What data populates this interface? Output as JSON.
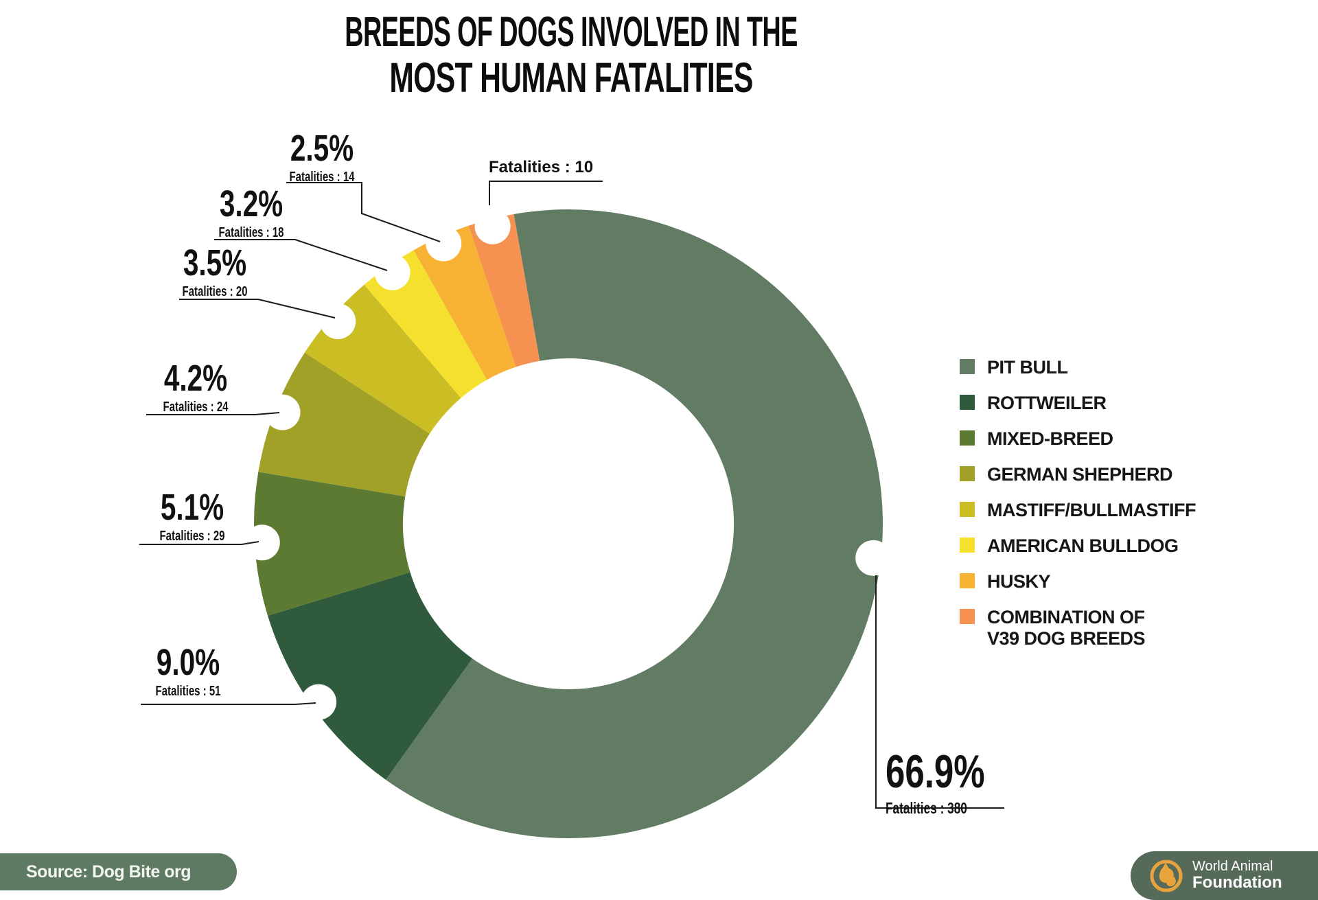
{
  "title": {
    "line1": "BREEDS OF DOGS INVOLVED IN THE",
    "line2": "MOST HUMAN FATALITIES"
  },
  "chart_data": {
    "type": "donut",
    "title": "BREEDS OF DOGS INVOLVED IN THE MOST HUMAN FATALITIES",
    "legend_position": "right",
    "segments": [
      {
        "slug": "pit-bull",
        "label": "PIT BULL",
        "percent": 66.9,
        "percent_label": "66.9%",
        "fatalities": 380,
        "fatalities_label": "Fatalities : 380",
        "color": "#627C64",
        "angle_start": -10,
        "angle_end": 215.5,
        "notch_angle": 96.4
      },
      {
        "slug": "rottweiler",
        "label": "ROTTWEILER",
        "percent": 9.0,
        "percent_label": "9.0%",
        "fatalities": 51,
        "fatalities_label": "Fatalities : 51",
        "color": "#2F5A3C",
        "angle_start": 215.5,
        "angle_end": 253,
        "notch_angle": 234.5
      },
      {
        "slug": "mixed-breed",
        "label": "MIXED-BREED",
        "percent": 5.1,
        "percent_label": "5.1%",
        "fatalities": 29,
        "fatalities_label": "Fatalities : 29",
        "color": "#5C7A31",
        "angle_start": 253,
        "angle_end": 279.5,
        "notch_angle": 266.5
      },
      {
        "slug": "german-shepherd",
        "label": "GERMAN SHEPHERD",
        "percent": 4.2,
        "percent_label": "4.2%",
        "fatalities": 24,
        "fatalities_label": "Fatalities : 24",
        "color": "#A2A127",
        "angle_start": 279.5,
        "angle_end": 303,
        "notch_angle": 291.3
      },
      {
        "slug": "mastiff-bullmastiff",
        "label": "MASTIFF/BULLMASTIFF",
        "percent": 3.5,
        "percent_label": "3.5%",
        "fatalities": 20,
        "fatalities_label": "Fatalities : 20",
        "color": "#CBBD24",
        "angle_start": 303,
        "angle_end": 319.5,
        "notch_angle": 311.3
      },
      {
        "slug": "american-bulldog",
        "label": "AMERICAN BULLDOG",
        "percent": 3.2,
        "percent_label": "3.2%",
        "fatalities": 18,
        "fatalities_label": "Fatalities : 18",
        "color": "#F6E02E",
        "angle_start": 319.5,
        "angle_end": 330.5,
        "notch_angle": 325
      },
      {
        "slug": "husky",
        "label": "HUSKY",
        "percent": 2.5,
        "percent_label": "2.5%",
        "fatalities": 14,
        "fatalities_label": "Fatalities : 14",
        "color": "#F8B233",
        "angle_start": 330.5,
        "angle_end": 341.5,
        "notch_angle": 336
      },
      {
        "slug": "combination-v39",
        "label": "COMBINATION OF\nV39 DOG BREEDS",
        "percent": null,
        "percent_label": null,
        "fatalities": 10,
        "fatalities_label": "Fatalities : 10",
        "color": "#F69251",
        "angle_start": 341.5,
        "angle_end": 350,
        "notch_angle": 345.7
      }
    ]
  },
  "source": {
    "label": "Source: Dog Bite org"
  },
  "logo": {
    "line1": "World Animal",
    "line2": "Foundation"
  },
  "colors": {
    "source_pill": "#5E7A63",
    "logo_pill": "#566A5A",
    "logo_gold": "#E8A33C",
    "leader_line": "#1B1B1B"
  }
}
